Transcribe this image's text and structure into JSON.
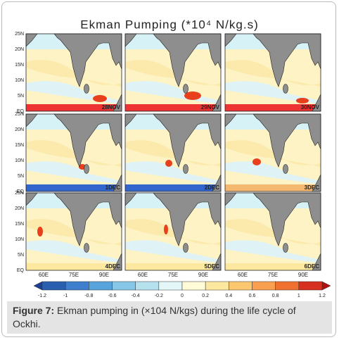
{
  "title": "Ekman Pumping (*10⁴ N/kg.s)",
  "y_axis_labels": [
    "25N",
    "20N",
    "15N",
    "10N",
    "5N",
    "EQ"
  ],
  "x_axis_labels": [
    "60E",
    "75E",
    "90E"
  ],
  "panels": [
    "28NOV",
    "29NOV",
    "30NOV",
    "1DEC",
    "2DEC",
    "3DEC",
    "4DEC",
    "5DEC",
    "6DEC"
  ],
  "colorbar": {
    "labels": [
      "-1.2",
      "-1",
      "-0.8",
      "-0.6",
      "-0.4",
      "-0.2",
      "0",
      "0.2",
      "0.4",
      "0.6",
      "0.8",
      "1",
      "1.2"
    ]
  },
  "caption": {
    "label": "Figure 7:",
    "text": "Ekman pumping in (×104 N/kgs) during the life cycle of Ockhi."
  }
}
